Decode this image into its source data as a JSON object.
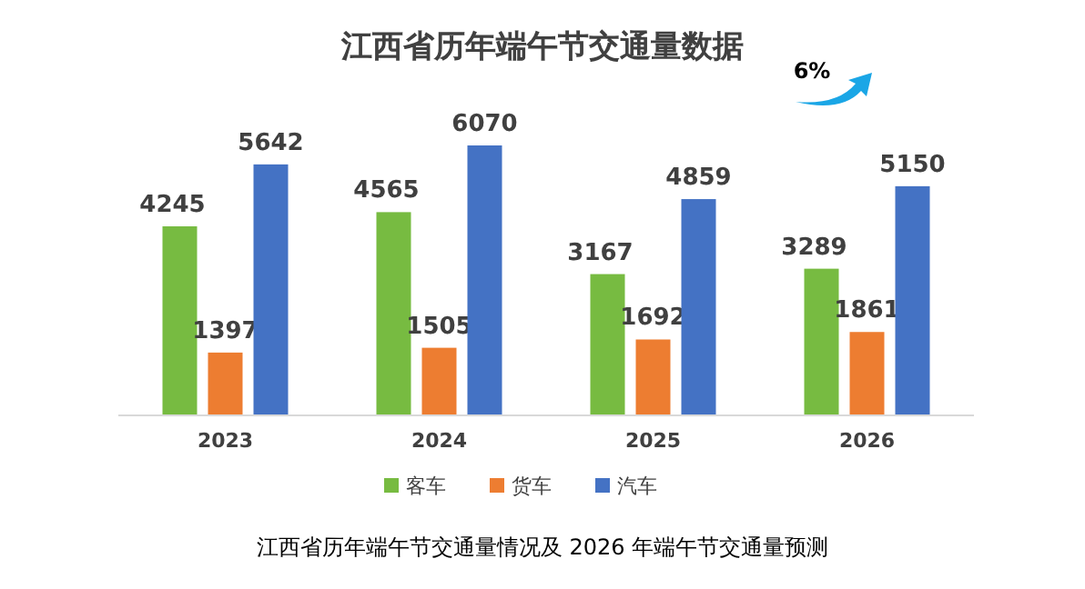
{
  "chart_data": {
    "type": "bar",
    "title": "江西省历年端午节交通量数据",
    "categories": [
      "2023",
      "2024",
      "2025",
      "2026"
    ],
    "series": [
      {
        "name": "客车",
        "color": "#77bb41",
        "values": [
          4245,
          4565,
          3167,
          3289
        ]
      },
      {
        "name": "货车",
        "color": "#ed7d31",
        "values": [
          1397,
          1505,
          1692,
          1861
        ]
      },
      {
        "name": "汽车",
        "color": "#4472c4",
        "values": [
          5642,
          6070,
          4859,
          5150
        ]
      }
    ],
    "data_labels": true,
    "legend": "bottom",
    "annotations": [
      "6%",
      "江西省历年端午节交通量情况及 2026 年端午节交通量预测"
    ]
  }
}
